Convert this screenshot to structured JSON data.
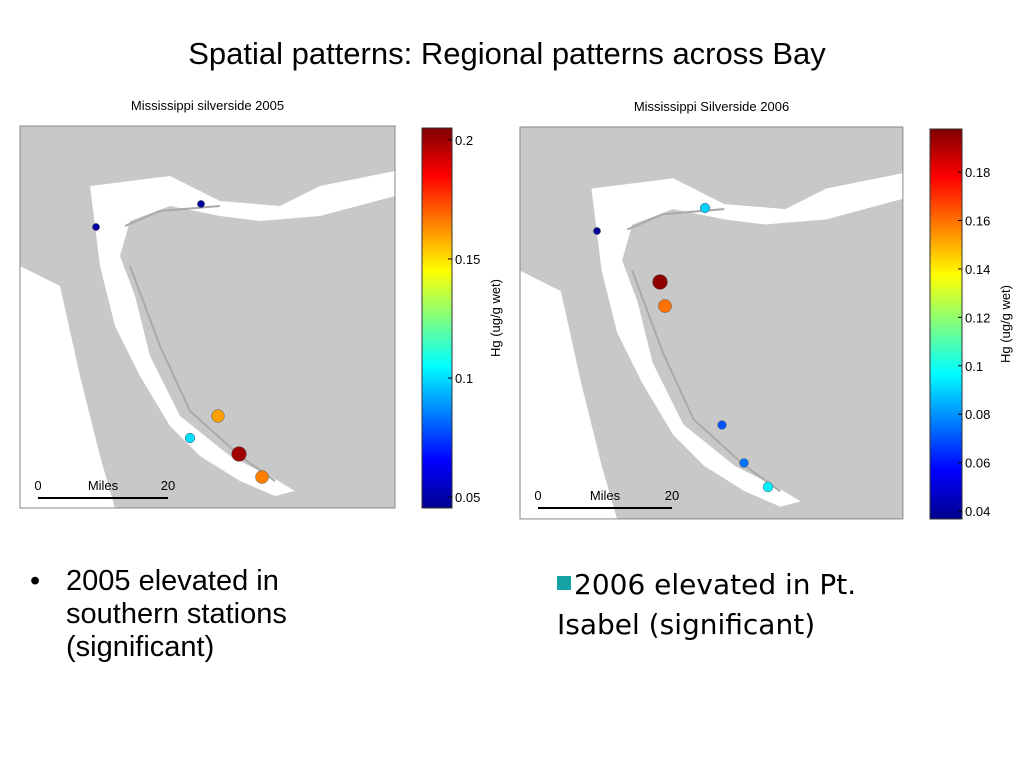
{
  "title": "Spatial patterns: Regional patterns across Bay",
  "maps": [
    {
      "title": "Mississippi silverside 2005",
      "colorbar": {
        "label": "Hg (ug/g wet)",
        "lim": [
          0.0454,
          0.205
        ],
        "ticks": [
          0.05,
          0.1,
          0.15,
          0.2
        ]
      },
      "scale_bar": {
        "start": "0",
        "unit": "Miles",
        "end": "20"
      },
      "stations": [
        0.05,
        0.05,
        0.16,
        0.1,
        0.2,
        0.165
      ]
    },
    {
      "title": "Mississippi Silverside 2006",
      "colorbar": {
        "label": "Hg (ug/g wet)",
        "lim": [
          0.0367,
          0.1978
        ],
        "ticks": [
          0.04,
          0.06,
          0.08,
          0.1,
          0.12,
          0.14,
          0.16,
          0.18
        ]
      },
      "scale_bar": {
        "start": "0",
        "unit": "Miles",
        "end": "20"
      },
      "stations": [
        0.04,
        0.09,
        0.195,
        0.16,
        0.07,
        0.075,
        0.095
      ]
    }
  ],
  "bullets": [
    "2005 elevated in southern stations (significant)",
    "2006 elevated in Pt. Isabel (significant)"
  ]
}
